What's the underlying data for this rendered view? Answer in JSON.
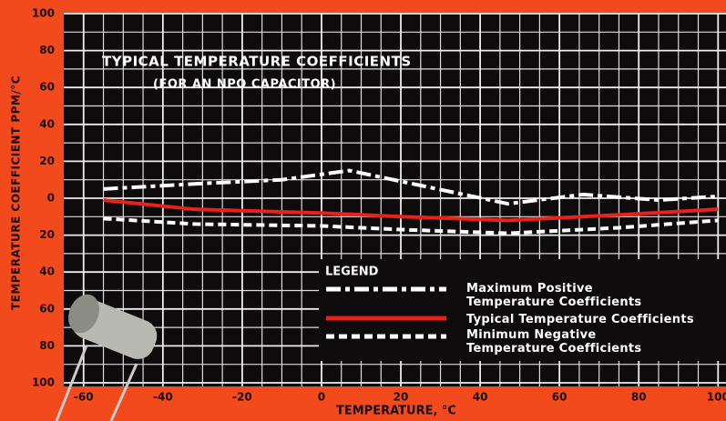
{
  "chart_data": {
    "type": "line",
    "title": "TYPICAL TEMPERATURE COEFFICIENTS",
    "subtitle": "(FOR AN NPO CAPACITOR)",
    "x_label": "TEMPERATURE, °C",
    "y_label": "TEMPERATURE COEFFICIENT PPM/°C",
    "legend_title": "LEGEND",
    "xlim": [
      -65,
      102
    ],
    "xticks": [
      -60,
      -40,
      -20,
      0,
      20,
      40,
      60,
      80,
      100
    ],
    "ylim": [
      -100,
      100
    ],
    "yticks": [
      {
        "value": -100,
        "label": "100"
      },
      {
        "value": -80,
        "label": "80"
      },
      {
        "value": -60,
        "label": "60"
      },
      {
        "value": -40,
        "label": "40"
      },
      {
        "value": -20,
        "label": "20"
      },
      0,
      20,
      40,
      60,
      80,
      100
    ],
    "grid": true,
    "series": [
      {
        "name": "Maximum Positive\nTemperature Coefficients",
        "color": "#ffffff",
        "style": "dash-dot",
        "x": [
          -55,
          -30,
          -10,
          7,
          47,
          66,
          85,
          100
        ],
        "values": [
          5,
          8,
          10,
          15,
          -3,
          2,
          -1,
          1
        ]
      },
      {
        "name": "Typical Temperature Coefficients",
        "color": "#e8221a",
        "style": "solid",
        "x": [
          -55,
          -32,
          0,
          20,
          47,
          75,
          100
        ],
        "values": [
          -1,
          -6,
          -8,
          -10,
          -12,
          -9,
          -6
        ]
      },
      {
        "name": "Minimum Negative\nTemperature Coefficients",
        "color": "#ffffff",
        "style": "dashed",
        "x": [
          -55,
          -32,
          0,
          20,
          47,
          75,
          100
        ],
        "values": [
          -11,
          -14,
          -15,
          -17,
          -19,
          -16,
          -12
        ]
      }
    ]
  }
}
